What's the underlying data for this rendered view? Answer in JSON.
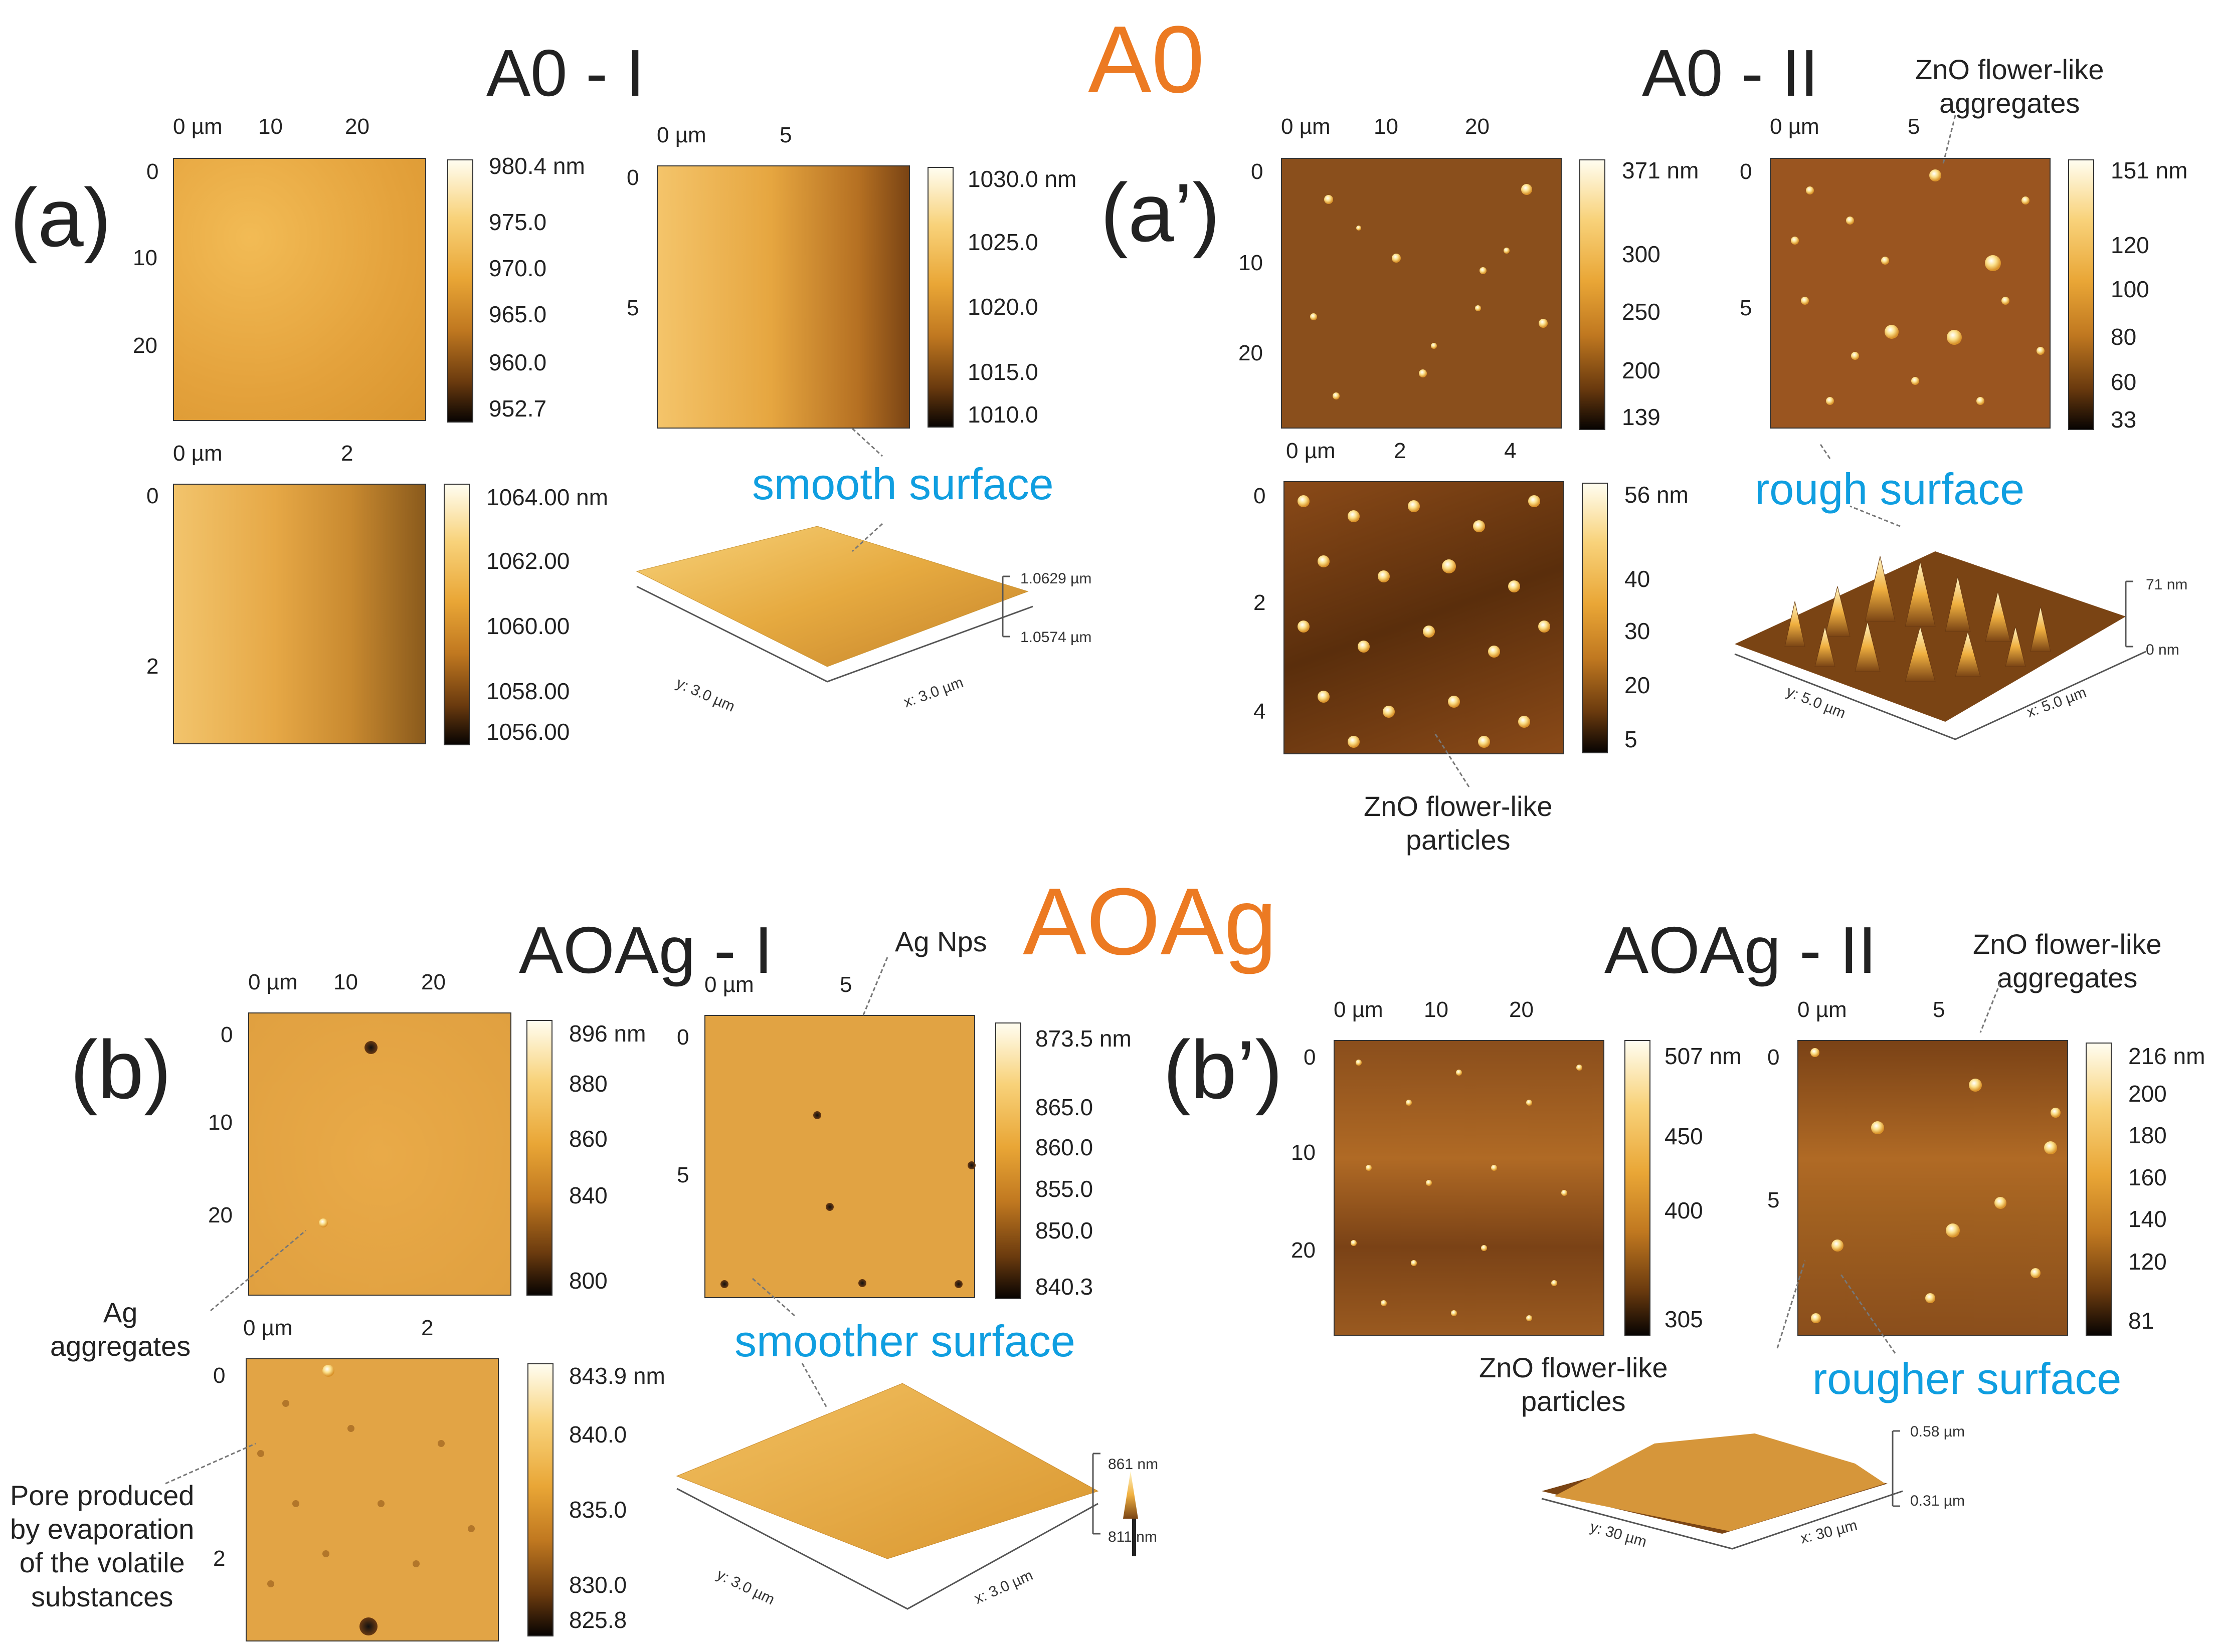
{
  "titles": {
    "a0": "A0",
    "a0ag": "AOAg",
    "a0_i": "A0 - I",
    "a0_ii": "A0 - II",
    "a0ag_i": "AOAg - I",
    "a0ag_ii": "AOAg - II"
  },
  "labels": {
    "a": "(a)",
    "a_prime": "(a’)",
    "b": "(b)",
    "b_prime": "(b’)"
  },
  "panels": {
    "a_1": {
      "x_ticks": [
        "0 µm",
        "10",
        "20"
      ],
      "y_ticks": [
        "0",
        "10",
        "20"
      ],
      "cbar": [
        "980.4 nm",
        "975.0",
        "970.0",
        "965.0",
        "960.0",
        "952.7"
      ]
    },
    "a_2": {
      "x_ticks": [
        "0 µm",
        "5"
      ],
      "y_ticks": [
        "0",
        "5"
      ],
      "cbar": [
        "1030.0 nm",
        "1025.0",
        "1020.0",
        "1015.0",
        "1010.0"
      ]
    },
    "a_3": {
      "x_ticks": [
        "0 µm",
        "2"
      ],
      "y_ticks": [
        "0",
        "2"
      ],
      "cbar": [
        "1064.00 nm",
        "1062.00",
        "1060.00",
        "1058.00",
        "1056.00"
      ]
    },
    "a_3d": {
      "z_top": "1.0629 µm",
      "z_bottom": "1.0574 µm",
      "y_axis": "y: 3.0 µm",
      "x_axis": "x: 3.0 µm"
    },
    "ap_1": {
      "x_ticks": [
        "0 µm",
        "10",
        "20"
      ],
      "y_ticks": [
        "0",
        "10",
        "20"
      ],
      "cbar": [
        "371 nm",
        "300",
        "250",
        "200",
        "139"
      ]
    },
    "ap_2": {
      "x_ticks": [
        "0 µm",
        "5"
      ],
      "y_ticks": [
        "0",
        "5"
      ],
      "cbar": [
        "151 nm",
        "120",
        "100",
        "80",
        "60",
        "33"
      ]
    },
    "ap_3": {
      "x_ticks": [
        "0 µm",
        "2",
        "4"
      ],
      "y_ticks": [
        "0",
        "2",
        "4"
      ],
      "cbar": [
        "56 nm",
        "40",
        "30",
        "20",
        "5"
      ]
    },
    "ap_3d": {
      "z_top": "71 nm",
      "z_bottom": "0 nm",
      "y_axis": "y: 5.0 µm",
      "x_axis": "x: 5.0 µm"
    },
    "b_1": {
      "x_ticks": [
        "0 µm",
        "10",
        "20"
      ],
      "y_ticks": [
        "0",
        "10",
        "20"
      ],
      "cbar": [
        "896 nm",
        "880",
        "860",
        "840",
        "800"
      ]
    },
    "b_2": {
      "x_ticks": [
        "0 µm",
        "5"
      ],
      "y_ticks": [
        "0",
        "5"
      ],
      "cbar": [
        "873.5 nm",
        "865.0",
        "860.0",
        "855.0",
        "850.0",
        "840.3"
      ]
    },
    "b_3": {
      "x_ticks": [
        "0 µm",
        "2"
      ],
      "y_ticks": [
        "0",
        "2"
      ],
      "cbar": [
        "843.9 nm",
        "840.0",
        "835.0",
        "830.0",
        "825.8"
      ]
    },
    "b_3d": {
      "z_top": "861 nm",
      "z_bottom": "811 nm",
      "y_axis": "y: 3.0 µm",
      "x_axis": "x: 3.0 µm"
    },
    "bp_1": {
      "x_ticks": [
        "0 µm",
        "10",
        "20"
      ],
      "y_ticks": [
        "0",
        "10",
        "20"
      ],
      "cbar": [
        "507 nm",
        "450",
        "400",
        "305"
      ]
    },
    "bp_2": {
      "x_ticks": [
        "0 µm",
        "5"
      ],
      "y_ticks": [
        "0",
        "5"
      ],
      "cbar": [
        "216 nm",
        "200",
        "180",
        "160",
        "140",
        "120",
        "81"
      ]
    },
    "bp_3d": {
      "z_top": "0.58 µm",
      "z_bottom": "0.31 µm",
      "y_axis": "y: 30 µm",
      "x_axis": "x: 30 µm"
    }
  },
  "annotations": {
    "smooth_surface": "smooth surface",
    "rough_surface": "rough surface",
    "smoother_surface": "smoother surface",
    "rougher_surface": "rougher surface",
    "zno_aggregates_1": "ZnO flower-like\naggregates",
    "zno_particles_1": "ZnO flower-like\nparticles",
    "ag_nps": "Ag Nps",
    "ag_aggregates": "Ag\naggregates",
    "pore": "Pore produced\nby evaporation\nof the volatile\nsubstances",
    "zno_aggregates_2": "ZnO flower-like\naggregates",
    "zno_particles_2": "ZnO flower-like\nparticles"
  },
  "colors": {
    "accent_orange": "#ec7a22",
    "annotation_blue": "#0f9ee0"
  }
}
